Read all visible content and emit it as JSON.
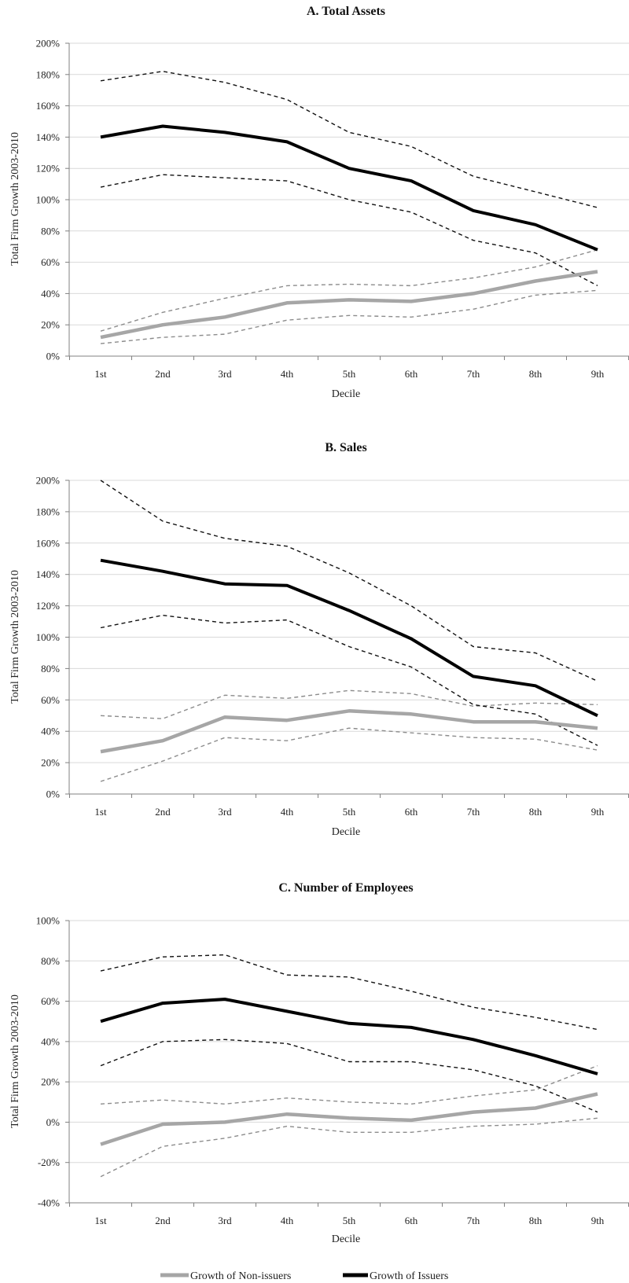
{
  "legend": {
    "nonissuers_label": "Growth of Non-issuers",
    "issuers_label": "Growth of Issuers"
  },
  "colors": {
    "issuers": "#000000",
    "issuers_band": "#111111",
    "nonissuers": "#a6a6a6",
    "nonissuers_band": "#8c8c8c",
    "grid": "#d9d9d9",
    "axis": "#808080"
  },
  "chart_data": [
    {
      "type": "line",
      "title": "A. Total Assets",
      "xlabel": "Decile",
      "ylabel": "Total Firm Growth 2003-2010",
      "categories": [
        "1st",
        "2nd",
        "3rd",
        "4th",
        "5th",
        "6th",
        "7th",
        "8th",
        "9th"
      ],
      "ylim": [
        0,
        200
      ],
      "yticks": [
        0,
        20,
        40,
        60,
        80,
        100,
        120,
        140,
        160,
        180,
        200
      ],
      "ytick_labels": [
        "0%",
        "20%",
        "40%",
        "60%",
        "80%",
        "100%",
        "120%",
        "140%",
        "160%",
        "180%",
        "200%"
      ],
      "grid": true,
      "series": [
        {
          "name": "Growth of Issuers",
          "role": "issuers",
          "values": [
            140,
            147,
            143,
            137,
            120,
            112,
            93,
            84,
            68
          ]
        },
        {
          "role": "issuers_upper",
          "values": [
            176,
            182,
            175,
            164,
            143,
            134,
            115,
            105,
            95
          ]
        },
        {
          "role": "issuers_lower",
          "values": [
            108,
            116,
            114,
            112,
            100,
            92,
            74,
            66,
            45
          ]
        },
        {
          "name": "Growth of Non-issuers",
          "role": "nonissuers",
          "values": [
            12,
            20,
            25,
            34,
            36,
            35,
            40,
            48,
            54
          ]
        },
        {
          "role": "nonissuers_upper",
          "values": [
            16,
            28,
            37,
            45,
            46,
            45,
            50,
            57,
            68
          ]
        },
        {
          "role": "nonissuers_lower",
          "values": [
            8,
            12,
            14,
            23,
            26,
            25,
            30,
            39,
            42
          ]
        }
      ]
    },
    {
      "type": "line",
      "title": "B. Sales",
      "xlabel": "Decile",
      "ylabel": "Total Firm Growth 2003-2010",
      "categories": [
        "1st",
        "2nd",
        "3rd",
        "4th",
        "5th",
        "6th",
        "7th",
        "8th",
        "9th"
      ],
      "ylim": [
        0,
        200
      ],
      "yticks": [
        0,
        20,
        40,
        60,
        80,
        100,
        120,
        140,
        160,
        180,
        200
      ],
      "ytick_labels": [
        "0%",
        "20%",
        "40%",
        "60%",
        "80%",
        "100%",
        "120%",
        "140%",
        "160%",
        "180%",
        "200%"
      ],
      "grid": true,
      "series": [
        {
          "name": "Growth of Issuers",
          "role": "issuers",
          "values": [
            149,
            142,
            134,
            133,
            117,
            99,
            75,
            69,
            50
          ]
        },
        {
          "role": "issuers_upper",
          "values": [
            200,
            174,
            163,
            158,
            141,
            120,
            94,
            90,
            72
          ]
        },
        {
          "role": "issuers_lower",
          "values": [
            106,
            114,
            109,
            111,
            94,
            81,
            57,
            51,
            31
          ]
        },
        {
          "name": "Growth of Non-issuers",
          "role": "nonissuers",
          "values": [
            27,
            34,
            49,
            47,
            53,
            51,
            46,
            46,
            42
          ]
        },
        {
          "role": "nonissuers_upper",
          "values": [
            50,
            48,
            63,
            61,
            66,
            64,
            56,
            58,
            57
          ]
        },
        {
          "role": "nonissuers_lower",
          "values": [
            8,
            21,
            36,
            34,
            42,
            39,
            36,
            35,
            28
          ]
        }
      ]
    },
    {
      "type": "line",
      "title": "C. Number of Employees",
      "xlabel": "Decile",
      "ylabel": "Total Firm Growth 2003-2010",
      "categories": [
        "1st",
        "2nd",
        "3rd",
        "4th",
        "5th",
        "6th",
        "7th",
        "8th",
        "9th"
      ],
      "ylim": [
        -40,
        100
      ],
      "yticks": [
        -40,
        -20,
        0,
        20,
        40,
        60,
        80,
        100
      ],
      "ytick_labels": [
        "-40%",
        "-20%",
        "0%",
        "20%",
        "40%",
        "60%",
        "80%",
        "100%"
      ],
      "grid": true,
      "series": [
        {
          "name": "Growth of Issuers",
          "role": "issuers",
          "values": [
            50,
            59,
            61,
            55,
            49,
            47,
            41,
            33,
            24
          ]
        },
        {
          "role": "issuers_upper",
          "values": [
            75,
            82,
            83,
            73,
            72,
            65,
            57,
            52,
            46
          ]
        },
        {
          "role": "issuers_lower",
          "values": [
            28,
            40,
            41,
            39,
            30,
            30,
            26,
            18,
            5
          ]
        },
        {
          "name": "Growth of Non-issuers",
          "role": "nonissuers",
          "values": [
            -11,
            -1,
            0,
            4,
            2,
            1,
            5,
            7,
            14
          ]
        },
        {
          "role": "nonissuers_upper",
          "values": [
            9,
            11,
            9,
            12,
            10,
            9,
            13,
            16,
            28
          ]
        },
        {
          "role": "nonissuers_lower",
          "values": [
            -27,
            -12,
            -8,
            -2,
            -5,
            -5,
            -2,
            -1,
            2
          ]
        }
      ]
    }
  ]
}
